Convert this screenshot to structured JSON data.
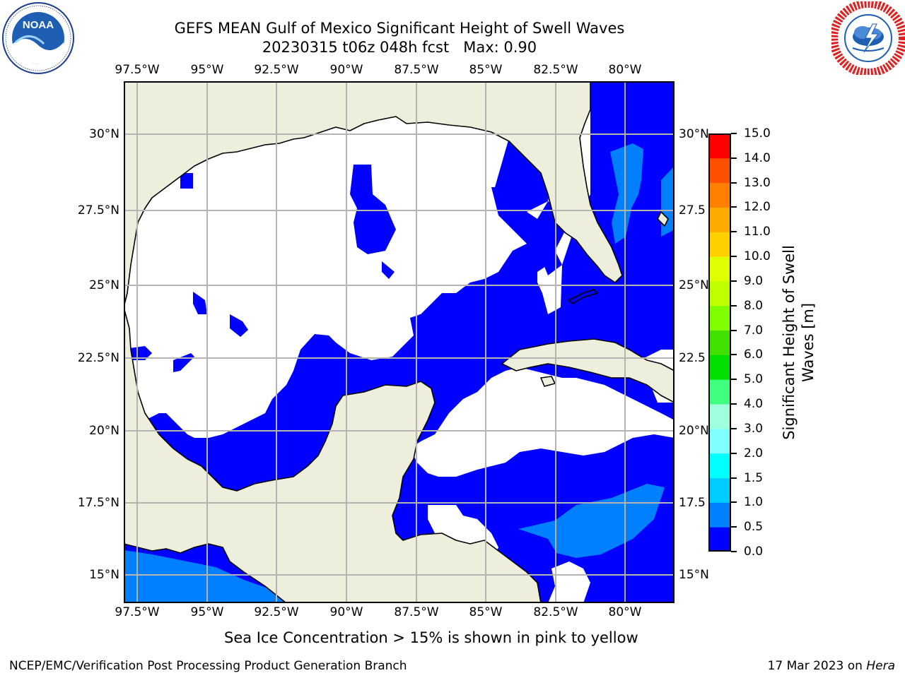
{
  "header": {
    "title_line1": "GEFS MEAN Gulf of Mexico Significant Height of Swell Waves",
    "title_line2": "20230315 t06z 048h fcst   Max: 0.90"
  },
  "logos": {
    "left": {
      "icon": "noaa-logo",
      "text": "NOAA",
      "ring_text": "NATIONAL OCEANIC AND ATMOSPHERIC ADMINISTRATION · U.S. DEPARTMENT OF COMMERCE"
    },
    "right": {
      "icon": "nws-logo",
      "ring_text": "NATIONAL WEATHER SERVICE"
    }
  },
  "map": {
    "lon_ticks": [
      "97.5°W",
      "95°W",
      "92.5°W",
      "90°W",
      "87.5°W",
      "85°W",
      "82.5°W",
      "80°W"
    ],
    "lat_ticks_left": [
      "30°N",
      "27.5°N",
      "25°N",
      "22.5°N",
      "20°N",
      "17.5°N",
      "15°N"
    ],
    "lat_ticks_right": [
      "30°N",
      "27.5",
      "25°N",
      "22.5",
      "20°N",
      "17.5",
      "15°N"
    ],
    "extent": {
      "lon_min": -98,
      "lon_max": -78.25,
      "lat_min": 14,
      "lat_max": 31.6
    },
    "colors": {
      "land": "#eeeedc",
      "ocean_lowest": "#0000ff",
      "ocean_second": "#0080ff",
      "grid": "#b4b4b4"
    }
  },
  "colorbar": {
    "label_line1": "Significant Height of Swell",
    "label_line2": "Waves [m]",
    "ticks": [
      "0.0",
      "0.5",
      "1.0",
      "1.5",
      "2.0",
      "3.0",
      "4.0",
      "5.0",
      "6.0",
      "7.0",
      "8.0",
      "9.0",
      "10.0",
      "11.0",
      "12.0",
      "13.0",
      "14.0",
      "15.0"
    ],
    "colors": [
      "#0000ff",
      "#0080ff",
      "#00ccff",
      "#00ffff",
      "#40ffff",
      "#80ffff",
      "#a0ffdc",
      "#40ff80",
      "#00e000",
      "#40e000",
      "#80ff00",
      "#c0ff00",
      "#e0ff00",
      "#ffff00",
      "#ffd000",
      "#ffaa00",
      "#ff8000",
      "#ff5000",
      "#ff0000"
    ]
  },
  "note": "Sea Ice Concentration > 15% is shown in pink to yellow",
  "footer": {
    "left": "NCEP/EMC/Verification Post Processing Product Generation Branch",
    "date": "17 Mar 2023 on ",
    "host": "Hera"
  }
}
